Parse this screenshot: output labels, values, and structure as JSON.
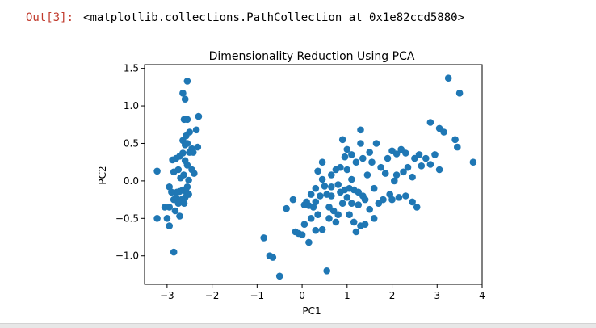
{
  "cell": {
    "prompt": "Out[3]:",
    "text": "<matplotlib.collections.PathCollection at 0x1e82ccd5880>"
  },
  "chart_data": {
    "type": "scatter",
    "title": "Dimensionality Reduction Using PCA",
    "xlabel": "PC1",
    "ylabel": "PC2",
    "xlim": [
      -3.5,
      4.0
    ],
    "ylim": [
      -1.38,
      1.55
    ],
    "xticks": [
      "−3",
      "−2",
      "−1",
      "0",
      "1",
      "2",
      "3",
      "4"
    ],
    "yticks": [
      "−1.0",
      "−0.5",
      "0.0",
      "0.5",
      "1.0",
      "1.5"
    ],
    "xtick_values": [
      -3,
      -2,
      -1,
      0,
      1,
      2,
      3,
      4
    ],
    "ytick_values": [
      -1.0,
      -0.5,
      0.0,
      0.5,
      1.0,
      1.5
    ],
    "grid": false,
    "point_color": "#1f77b4",
    "points": [
      [
        -2.55,
        1.33
      ],
      [
        -2.65,
        1.17
      ],
      [
        -2.6,
        1.09
      ],
      [
        -2.62,
        0.82
      ],
      [
        -2.55,
        0.82
      ],
      [
        -2.3,
        0.86
      ],
      [
        -2.35,
        0.68
      ],
      [
        -2.5,
        0.65
      ],
      [
        -2.58,
        0.6
      ],
      [
        -2.65,
        0.54
      ],
      [
        -2.6,
        0.48
      ],
      [
        -2.55,
        0.5
      ],
      [
        -2.32,
        0.45
      ],
      [
        -2.45,
        0.43
      ],
      [
        -2.5,
        0.38
      ],
      [
        -2.65,
        0.37
      ],
      [
        -2.72,
        0.33
      ],
      [
        -2.8,
        0.3
      ],
      [
        -2.88,
        0.28
      ],
      [
        -2.6,
        0.27
      ],
      [
        -2.42,
        0.38
      ],
      [
        -2.55,
        0.21
      ],
      [
        -2.75,
        0.15
      ],
      [
        -2.85,
        0.12
      ],
      [
        -2.45,
        0.15
      ],
      [
        -2.63,
        0.08
      ],
      [
        -2.7,
        0.04
      ],
      [
        -2.52,
        0.01
      ],
      [
        -2.4,
        0.1
      ],
      [
        -3.22,
        0.13
      ],
      [
        -2.95,
        -0.08
      ],
      [
        -2.65,
        -0.12
      ],
      [
        -2.57,
        -0.15
      ],
      [
        -2.72,
        -0.14
      ],
      [
        -2.78,
        -0.15
      ],
      [
        -2.9,
        -0.15
      ],
      [
        -2.52,
        -0.18
      ],
      [
        -2.6,
        -0.22
      ],
      [
        -2.68,
        -0.25
      ],
      [
        -2.8,
        -0.22
      ],
      [
        -2.85,
        -0.25
      ],
      [
        -2.75,
        -0.3
      ],
      [
        -2.62,
        -0.3
      ],
      [
        -2.95,
        -0.35
      ],
      [
        -2.82,
        -0.4
      ],
      [
        -3.05,
        -0.35
      ],
      [
        -2.72,
        -0.47
      ],
      [
        -3.22,
        -0.5
      ],
      [
        -3.0,
        -0.5
      ],
      [
        -2.95,
        -0.6
      ],
      [
        -2.85,
        -0.95
      ],
      [
        -2.55,
        -0.08
      ],
      [
        -0.85,
        -0.76
      ],
      [
        -0.72,
        -1.0
      ],
      [
        -0.65,
        -1.02
      ],
      [
        -0.5,
        -1.27
      ],
      [
        -0.35,
        -0.37
      ],
      [
        -0.2,
        -0.25
      ],
      [
        -0.15,
        -0.68
      ],
      [
        -0.08,
        -0.7
      ],
      [
        0.0,
        -0.72
      ],
      [
        0.05,
        -0.58
      ],
      [
        0.15,
        -0.82
      ],
      [
        0.3,
        -0.66
      ],
      [
        0.2,
        -0.5
      ],
      [
        0.45,
        -0.65
      ],
      [
        0.55,
        -1.2
      ],
      [
        0.15,
        -0.33
      ],
      [
        0.05,
        -0.32
      ],
      [
        0.1,
        -0.28
      ],
      [
        0.25,
        -0.35
      ],
      [
        0.35,
        -0.45
      ],
      [
        0.3,
        -0.28
      ],
      [
        0.4,
        -0.2
      ],
      [
        0.55,
        -0.18
      ],
      [
        0.5,
        -0.07
      ],
      [
        0.2,
        -0.18
      ],
      [
        0.3,
        -0.1
      ],
      [
        0.45,
        0.02
      ],
      [
        0.65,
        -0.2
      ],
      [
        0.6,
        -0.35
      ],
      [
        0.7,
        -0.4
      ],
      [
        0.6,
        -0.5
      ],
      [
        0.8,
        -0.45
      ],
      [
        0.65,
        -0.08
      ],
      [
        0.8,
        -0.05
      ],
      [
        0.85,
        -0.15
      ],
      [
        0.95,
        -0.12
      ],
      [
        1.05,
        -0.1
      ],
      [
        1.15,
        -0.12
      ],
      [
        1.25,
        -0.15
      ],
      [
        1.35,
        -0.2
      ],
      [
        1.0,
        -0.22
      ],
      [
        0.9,
        -0.3
      ],
      [
        1.1,
        -0.3
      ],
      [
        1.25,
        -0.32
      ],
      [
        1.4,
        -0.25
      ],
      [
        0.75,
        -0.55
      ],
      [
        1.05,
        -0.45
      ],
      [
        1.15,
        -0.55
      ],
      [
        1.2,
        -0.68
      ],
      [
        1.3,
        -0.6
      ],
      [
        1.4,
        -0.58
      ],
      [
        1.6,
        -0.5
      ],
      [
        1.5,
        -0.38
      ],
      [
        1.7,
        -0.3
      ],
      [
        1.8,
        -0.25
      ],
      [
        1.95,
        -0.18
      ],
      [
        2.0,
        -0.25
      ],
      [
        2.15,
        -0.22
      ],
      [
        2.3,
        -0.2
      ],
      [
        2.45,
        -0.28
      ],
      [
        2.55,
        -0.35
      ],
      [
        2.05,
        0.0
      ],
      [
        2.1,
        0.08
      ],
      [
        2.25,
        0.12
      ],
      [
        2.35,
        0.18
      ],
      [
        2.45,
        0.05
      ],
      [
        2.5,
        0.3
      ],
      [
        2.6,
        0.35
      ],
      [
        2.75,
        0.3
      ],
      [
        2.65,
        0.2
      ],
      [
        2.85,
        0.22
      ],
      [
        3.05,
        0.15
      ],
      [
        2.95,
        0.35
      ],
      [
        3.45,
        0.45
      ],
      [
        3.8,
        0.25
      ],
      [
        3.4,
        0.55
      ],
      [
        3.05,
        0.7
      ],
      [
        3.15,
        0.65
      ],
      [
        2.85,
        0.78
      ],
      [
        3.25,
        1.37
      ],
      [
        3.5,
        1.17
      ],
      [
        0.35,
        0.13
      ],
      [
        0.45,
        0.25
      ],
      [
        0.65,
        0.08
      ],
      [
        0.75,
        0.15
      ],
      [
        0.85,
        0.18
      ],
      [
        0.95,
        0.32
      ],
      [
        1.0,
        0.42
      ],
      [
        1.1,
        0.35
      ],
      [
        1.2,
        0.25
      ],
      [
        1.35,
        0.3
      ],
      [
        1.5,
        0.38
      ],
      [
        1.65,
        0.5
      ],
      [
        1.55,
        0.25
      ],
      [
        1.75,
        0.18
      ],
      [
        1.85,
        0.1
      ],
      [
        1.9,
        0.3
      ],
      [
        2.0,
        0.4
      ],
      [
        2.1,
        0.36
      ],
      [
        2.2,
        0.42
      ],
      [
        2.3,
        0.37
      ],
      [
        1.3,
        0.68
      ],
      [
        0.9,
        0.55
      ],
      [
        1.0,
        0.15
      ],
      [
        1.1,
        0.02
      ],
      [
        1.6,
        -0.1
      ],
      [
        1.3,
        0.5
      ],
      [
        1.45,
        0.08
      ]
    ]
  }
}
